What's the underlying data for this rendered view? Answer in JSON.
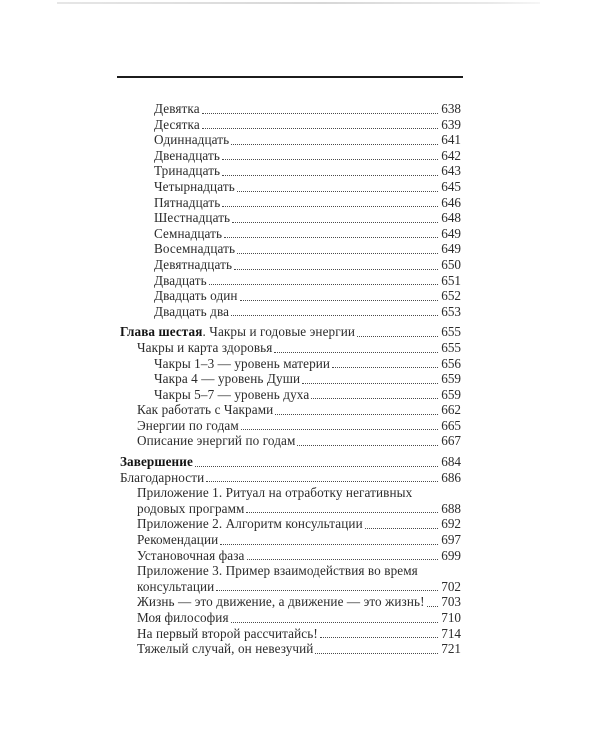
{
  "page": {
    "kind": "book-table-of-contents-scan",
    "language": "ru",
    "colors": {
      "background": "#ffffff",
      "text": "#2b2b2b",
      "bold_text": "#141414",
      "rule": "#1c1c1c",
      "scan_artifact": "#d7d7d7",
      "dot_leader": "#4a4a4a"
    }
  },
  "toc": {
    "entries": [
      {
        "level": 2,
        "gap_before": false,
        "lines": [
          {
            "text": "Девятка",
            "page": "638"
          }
        ]
      },
      {
        "level": 2,
        "gap_before": false,
        "lines": [
          {
            "text": "Десятка",
            "page": "639"
          }
        ]
      },
      {
        "level": 2,
        "gap_before": false,
        "lines": [
          {
            "text": "Одиннадцать",
            "page": "641"
          }
        ]
      },
      {
        "level": 2,
        "gap_before": false,
        "lines": [
          {
            "text": "Двенадцать",
            "page": "642"
          }
        ]
      },
      {
        "level": 2,
        "gap_before": false,
        "lines": [
          {
            "text": "Тринадцать",
            "page": "643"
          }
        ]
      },
      {
        "level": 2,
        "gap_before": false,
        "lines": [
          {
            "text": "Четырнадцать",
            "page": "645"
          }
        ]
      },
      {
        "level": 2,
        "gap_before": false,
        "lines": [
          {
            "text": "Пятнадцать",
            "page": "646"
          }
        ]
      },
      {
        "level": 2,
        "gap_before": false,
        "lines": [
          {
            "text": "Шестнадцать",
            "page": "648"
          }
        ]
      },
      {
        "level": 2,
        "gap_before": false,
        "lines": [
          {
            "text": "Семнадцать",
            "page": "649"
          }
        ]
      },
      {
        "level": 2,
        "gap_before": false,
        "lines": [
          {
            "text": "Восемнадцать",
            "page": "649"
          }
        ]
      },
      {
        "level": 2,
        "gap_before": false,
        "lines": [
          {
            "text": "Девятнадцать",
            "page": "650"
          }
        ]
      },
      {
        "level": 2,
        "gap_before": false,
        "lines": [
          {
            "text": "Двадцать",
            "page": "651"
          }
        ]
      },
      {
        "level": 2,
        "gap_before": false,
        "lines": [
          {
            "text": "Двадцать один",
            "page": "652"
          }
        ]
      },
      {
        "level": 2,
        "gap_before": false,
        "lines": [
          {
            "text": "Двадцать два",
            "page": "653"
          }
        ]
      },
      {
        "level": 0,
        "gap_before": true,
        "lines": [
          {
            "bold": "Глава шестая",
            "text": ". Чакры и годовые энергии",
            "page": "655"
          }
        ]
      },
      {
        "level": 1,
        "gap_before": false,
        "lines": [
          {
            "text": "Чакры и карта здоровья",
            "page": "655"
          }
        ]
      },
      {
        "level": 2,
        "gap_before": false,
        "lines": [
          {
            "text": "Чакры 1–3 — уровень материи",
            "page": "656"
          }
        ]
      },
      {
        "level": 2,
        "gap_before": false,
        "lines": [
          {
            "text": "Чакра 4 — уровень Души",
            "page": "659"
          }
        ]
      },
      {
        "level": 2,
        "gap_before": false,
        "lines": [
          {
            "text": "Чакры 5–7 — уровень духа",
            "page": "659"
          }
        ]
      },
      {
        "level": 1,
        "gap_before": false,
        "lines": [
          {
            "text": "Как работать с Чакрами",
            "page": "662"
          }
        ]
      },
      {
        "level": 1,
        "gap_before": false,
        "lines": [
          {
            "text": "Энергии по годам",
            "page": "665"
          }
        ]
      },
      {
        "level": 1,
        "gap_before": false,
        "lines": [
          {
            "text": "Описание энергий по годам",
            "page": "667"
          }
        ]
      },
      {
        "level": 0,
        "gap_before": true,
        "lines": [
          {
            "bold": "Завершение",
            "page": "684"
          }
        ]
      },
      {
        "level": 0,
        "gap_before": false,
        "lines": [
          {
            "text": "Благодарности",
            "page": "686"
          }
        ]
      },
      {
        "level": 1,
        "gap_before": false,
        "lines": [
          {
            "text": "Приложение 1. Ритуал на отработку негативных"
          },
          {
            "text": "родовых программ",
            "page": "688"
          }
        ]
      },
      {
        "level": 1,
        "gap_before": false,
        "lines": [
          {
            "text": "Приложение 2. Алгоритм консультации",
            "page": "692"
          }
        ]
      },
      {
        "level": 1,
        "gap_before": false,
        "lines": [
          {
            "text": "Рекомендации",
            "page": "697"
          }
        ]
      },
      {
        "level": 1,
        "gap_before": false,
        "lines": [
          {
            "text": "Установочная фаза",
            "page": "699"
          }
        ]
      },
      {
        "level": 1,
        "gap_before": false,
        "lines": [
          {
            "text": "Приложение 3. Пример взаимодействия во время"
          },
          {
            "text": "консультации",
            "page": "702"
          }
        ]
      },
      {
        "level": 1,
        "gap_before": false,
        "lines": [
          {
            "text": "Жизнь — это движение, а движение — это жизнь!",
            "page": "703"
          }
        ]
      },
      {
        "level": 1,
        "gap_before": false,
        "lines": [
          {
            "text": "Моя философия",
            "page": "710"
          }
        ]
      },
      {
        "level": 1,
        "gap_before": false,
        "lines": [
          {
            "text": "На первый второй рассчитайсь!",
            "page": "714"
          }
        ]
      },
      {
        "level": 1,
        "gap_before": false,
        "lines": [
          {
            "text": "Тяжелый случай, он невезучий",
            "page": "721"
          }
        ]
      }
    ]
  }
}
